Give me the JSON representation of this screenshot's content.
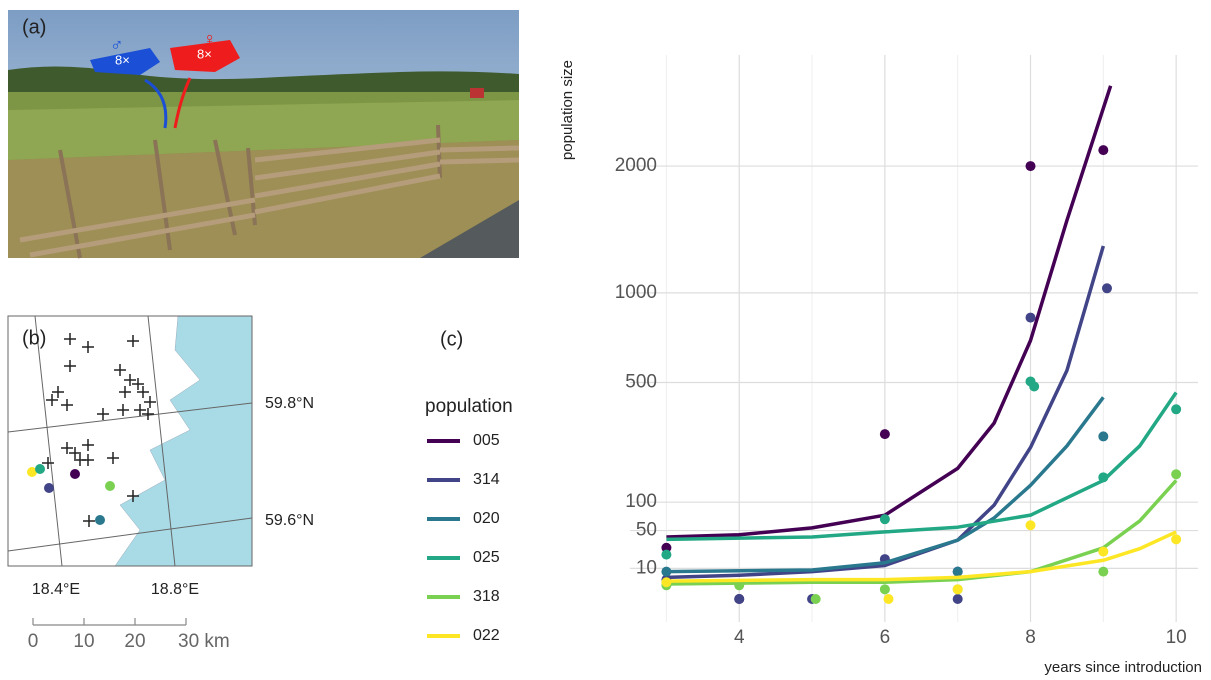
{
  "panels": {
    "a": {
      "label": "(a)",
      "male_symbol": "♂",
      "female_symbol": "♀",
      "male_count": "8×",
      "female_count": "8×"
    },
    "b": {
      "label": "(b)",
      "lat_labels": [
        "59.8°N",
        "59.6°N"
      ],
      "lon_labels": [
        "18.4°E",
        "18.8°E"
      ],
      "scale_labels": [
        "0",
        "10",
        "20",
        "30 km"
      ]
    }
  },
  "chart_data": {
    "type": "scatter",
    "panel_label": "(c)",
    "y_label": "population size",
    "x_label": "years since introduction",
    "legend_title": "population",
    "y_scale": "sqrt",
    "grid": true,
    "xlim": [
      2.5,
      10.3
    ],
    "xticks": [
      4,
      6,
      8,
      10
    ],
    "xminor": [
      3,
      5,
      7,
      9
    ],
    "ylim": [
      0,
      3100
    ],
    "yticks": [
      10,
      50,
      100,
      500,
      1000,
      2000
    ],
    "series": [
      {
        "name": "005",
        "color": "#440154",
        "x": [
          3,
          4,
          6,
          8,
          9
        ],
        "values": [
          28,
          0,
          290,
          2000,
          2150
        ],
        "fit_x": [
          3,
          4,
          5,
          6,
          7,
          7.5,
          8,
          8.5,
          9.1
        ],
        "fit_values": [
          41,
          44,
          54,
          75,
          182,
          330,
          713,
          1530,
          2810
        ]
      },
      {
        "name": "314",
        "color": "#414487",
        "x": [
          3,
          4,
          5,
          6,
          7,
          7,
          8,
          9.05
        ],
        "values": [
          4,
          0,
          0,
          17,
          0,
          8,
          845,
          1030
        ],
        "fit_x": [
          3,
          4,
          5,
          6,
          7,
          7.5,
          8,
          8.5,
          9
        ],
        "fit_values": [
          5,
          6,
          8,
          12,
          37,
          94,
          245,
          557,
          1330
        ]
      },
      {
        "name": "020",
        "color": "#2a788e",
        "x": [
          3,
          7,
          9
        ],
        "values": [
          8,
          8,
          282
        ],
        "fit_x": [
          3,
          5,
          6,
          7,
          7.5,
          8,
          8.5,
          9
        ],
        "fit_values": [
          8,
          9,
          14,
          37,
          70,
          138,
          250,
          434
        ]
      },
      {
        "name": "025",
        "color": "#22a884",
        "x": [
          3,
          6,
          8,
          8.05,
          9,
          10
        ],
        "values": [
          21,
          68,
          505,
          482,
          158,
          384
        ],
        "fit_x": [
          3,
          5,
          6,
          7,
          8,
          9,
          9.5,
          10
        ],
        "fit_values": [
          38,
          41,
          48,
          55,
          75,
          150,
          250,
          455
        ]
      },
      {
        "name": "318",
        "color": "#7ad151",
        "x": [
          3,
          4,
          5.05,
          6,
          7,
          9,
          10
        ],
        "values": [
          2,
          2,
          0,
          1,
          1,
          8,
          166
        ],
        "fit_x": [
          3,
          5,
          6,
          7,
          8,
          9,
          9.5,
          10
        ],
        "fit_values": [
          2.4,
          3,
          3,
          4,
          8,
          28,
          65,
          150
        ]
      },
      {
        "name": "022",
        "color": "#fde725",
        "x": [
          3,
          6.05,
          7,
          8,
          9,
          10
        ],
        "values": [
          3,
          0,
          1,
          58,
          24,
          38
        ],
        "fit_x": [
          3,
          5,
          6,
          7,
          8,
          9,
          9.5,
          10
        ],
        "fit_values": [
          3.4,
          4,
          4,
          5,
          8,
          16,
          27,
          48
        ]
      }
    ]
  }
}
